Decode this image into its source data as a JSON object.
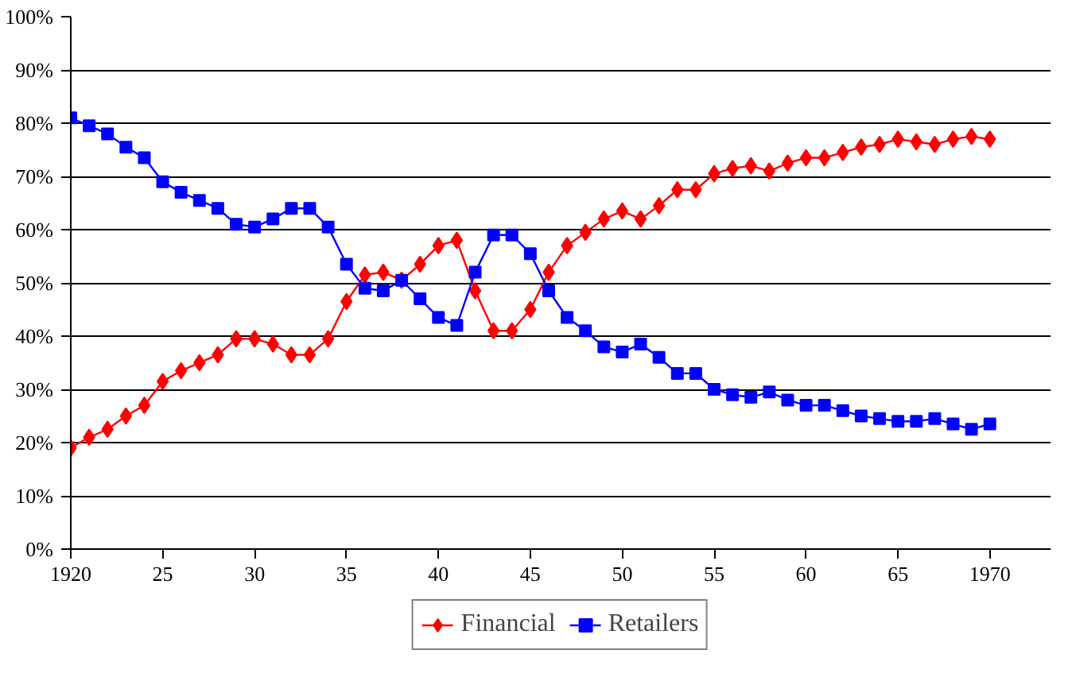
{
  "chart_data": {
    "type": "line",
    "x": [
      1920,
      1921,
      1922,
      1923,
      1924,
      1925,
      1926,
      1927,
      1928,
      1929,
      1930,
      1931,
      1932,
      1933,
      1934,
      1935,
      1936,
      1937,
      1938,
      1939,
      1940,
      1941,
      1942,
      1943,
      1944,
      1945,
      1946,
      1947,
      1948,
      1949,
      1950,
      1951,
      1952,
      1953,
      1954,
      1955,
      1956,
      1957,
      1958,
      1959,
      1960,
      1961,
      1962,
      1963,
      1964,
      1965,
      1966,
      1967,
      1968,
      1969,
      1970
    ],
    "series": [
      {
        "name": "Financial",
        "color": "#ff0000",
        "marker": "diamond",
        "values": [
          19,
          21,
          22.5,
          25,
          27,
          31.5,
          33.5,
          35,
          36.5,
          39.5,
          39.5,
          38.5,
          36.5,
          36.5,
          39.5,
          46.5,
          51.5,
          52,
          50.5,
          53.5,
          57,
          58,
          48.5,
          41,
          41,
          45,
          52,
          57,
          59.5,
          62,
          63.5,
          62,
          64.5,
          67.5,
          67.5,
          70.5,
          71.5,
          72,
          71,
          72.5,
          73.5,
          73.5,
          74.5,
          75.5,
          76,
          77,
          76.5,
          76,
          77,
          77.5,
          77
        ]
      },
      {
        "name": "Retailers",
        "color": "#0000ff",
        "marker": "square",
        "values": [
          81,
          79.5,
          78,
          75.5,
          73.5,
          69,
          67,
          65.5,
          64,
          61,
          60.5,
          62,
          64,
          64,
          60.5,
          53.5,
          49,
          48.5,
          50.5,
          47,
          43.5,
          42,
          52,
          59,
          59,
          55.5,
          48.5,
          43.5,
          41,
          38,
          37,
          38.5,
          36,
          33,
          33,
          30,
          29,
          28.5,
          29.5,
          28,
          27,
          27,
          26,
          25,
          24.5,
          24,
          24,
          24.5,
          23.5,
          22.5,
          23.5
        ]
      }
    ],
    "xlim": [
      1920,
      1973.3
    ],
    "xticks": [
      1920,
      {
        "value": 1925,
        "label": "25"
      },
      {
        "value": 1930,
        "label": "30"
      },
      {
        "value": 1935,
        "label": "35"
      },
      {
        "value": 1940,
        "label": "40"
      },
      {
        "value": 1945,
        "label": "45"
      },
      {
        "value": 1950,
        "label": "50"
      },
      {
        "value": 1955,
        "label": "55"
      },
      {
        "value": 1960,
        "label": "60"
      },
      {
        "value": 1965,
        "label": "65"
      },
      1970
    ],
    "ylim": [
      0,
      100
    ],
    "yticks": [
      {
        "value": 0,
        "label": "0%"
      },
      {
        "value": 10,
        "label": "10%"
      },
      {
        "value": 20,
        "label": "20%"
      },
      {
        "value": 30,
        "label": "30%"
      },
      {
        "value": 40,
        "label": "40%"
      },
      {
        "value": 50,
        "label": "50%"
      },
      {
        "value": 60,
        "label": "60%"
      },
      {
        "value": 70,
        "label": "70%"
      },
      {
        "value": 80,
        "label": "80%"
      },
      {
        "value": 90,
        "label": "90%"
      },
      {
        "value": 100,
        "label": "100%"
      }
    ],
    "grid": "y",
    "legend": "bottom",
    "line_style": "solid"
  }
}
